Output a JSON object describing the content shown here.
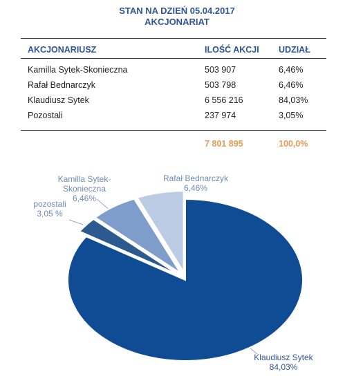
{
  "header": {
    "title": "STAN NA DZIEŃ 05.04.2017",
    "subtitle": "AKCJONARIAT"
  },
  "table": {
    "columns": [
      "AKCJONARIUSZ",
      "ILOŚĆ AKCJI",
      "UDZIAŁ"
    ],
    "rows": [
      [
        "Kamilla Sytek-Skonieczna",
        "503 907",
        "6,46%"
      ],
      [
        "Rafał Bednarczyk",
        "503 798",
        "6,46%"
      ],
      [
        "Klaudiusz Sytek",
        "6 556 216",
        "84,03%"
      ],
      [
        "Pozostali",
        "237 974",
        "3,05%"
      ]
    ],
    "total": [
      "7 801 895",
      "100,0%"
    ]
  },
  "chart_data": {
    "type": "pie",
    "categories": [
      "Klaudiusz Sytek",
      "pozostali",
      "Kamilla Sytek-Skonieczna",
      "Rafał Bednarczyk"
    ],
    "values": [
      84.03,
      3.05,
      6.46,
      6.46
    ],
    "value_labels": [
      "84,03%",
      "3,05 %",
      "6,46%",
      "6,46%"
    ],
    "colors": [
      "#0f4c93",
      "#2c5a8f",
      "#7f9dca",
      "#bccbe4"
    ]
  }
}
